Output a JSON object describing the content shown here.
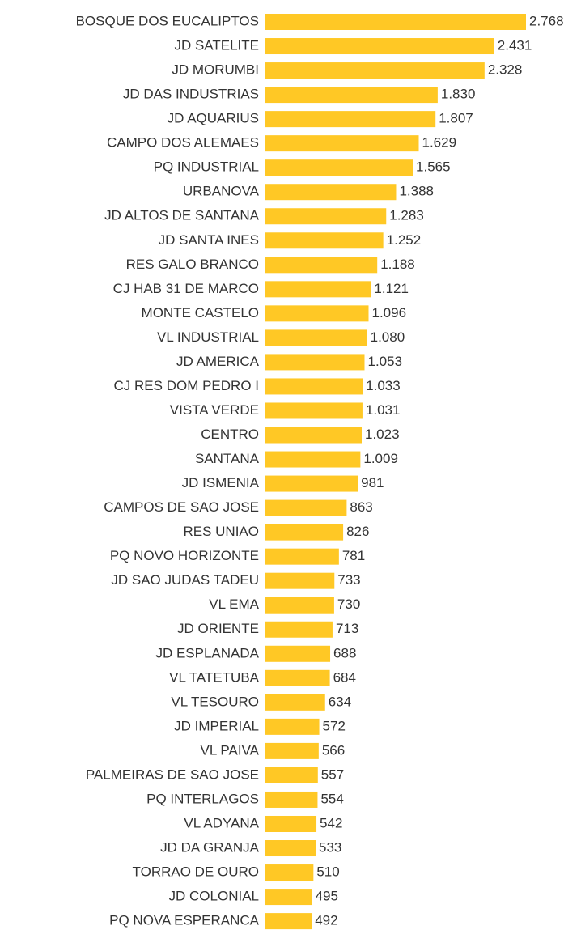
{
  "chart_data": {
    "type": "bar",
    "orientation": "horizontal",
    "color": "#ffc825",
    "categories": [
      "BOSQUE DOS EUCALIPTOS",
      "JD SATELITE",
      "JD MORUMBI",
      "JD DAS INDUSTRIAS",
      "JD AQUARIUS",
      "CAMPO DOS ALEMAES",
      "PQ INDUSTRIAL",
      "URBANOVA",
      "JD ALTOS DE SANTANA",
      "JD SANTA INES",
      "RES GALO BRANCO",
      "CJ HAB 31 DE MARCO",
      "MONTE CASTELO",
      "VL INDUSTRIAL",
      "JD AMERICA",
      "CJ RES DOM PEDRO I",
      "VISTA VERDE",
      "CENTRO",
      "SANTANA",
      "JD ISMENIA",
      "CAMPOS DE SAO JOSE",
      "RES UNIAO",
      "PQ NOVO HORIZONTE",
      "JD SAO JUDAS TADEU",
      "VL EMA",
      "JD ORIENTE",
      "JD ESPLANADA",
      "VL TATETUBA",
      "VL TESOURO",
      "JD IMPERIAL",
      "VL PAIVA",
      "PALMEIRAS DE SAO JOSE",
      "PQ INTERLAGOS",
      "VL ADYANA",
      "JD DA GRANJA",
      "TORRAO DE OURO",
      "JD COLONIAL",
      "PQ NOVA ESPERANCA"
    ],
    "values": [
      2768,
      2431,
      2328,
      1830,
      1807,
      1629,
      1565,
      1388,
      1283,
      1252,
      1188,
      1121,
      1096,
      1080,
      1053,
      1033,
      1031,
      1023,
      1009,
      981,
      863,
      826,
      781,
      733,
      730,
      713,
      688,
      684,
      634,
      572,
      566,
      557,
      554,
      542,
      533,
      510,
      495,
      492
    ],
    "value_labels": [
      "2.768",
      "2.431",
      "2.328",
      "1.830",
      "1.807",
      "1.629",
      "1.565",
      "1.388",
      "1.283",
      "1.252",
      "1.188",
      "1.121",
      "1.096",
      "1.080",
      "1.053",
      "1.033",
      "1.031",
      "1.023",
      "1.009",
      "981",
      "863",
      "826",
      "781",
      "733",
      "730",
      "713",
      "688",
      "684",
      "634",
      "572",
      "566",
      "557",
      "554",
      "542",
      "533",
      "510",
      "495",
      "492"
    ]
  }
}
